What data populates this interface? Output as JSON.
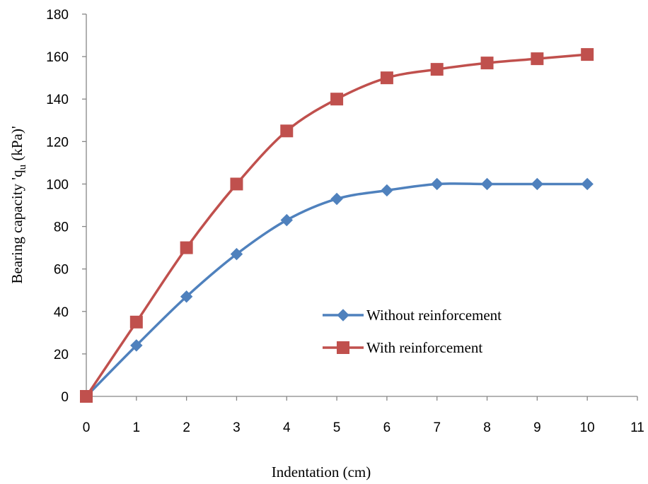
{
  "chart_data": {
    "type": "line",
    "title": "",
    "xlabel": "Indentation (cm)",
    "ylabel": {
      "prefix": "Bearing capacity 'q",
      "sub": "u",
      "suffix": " (kPa)'"
    },
    "xlim": [
      0,
      11
    ],
    "ylim": [
      0,
      180
    ],
    "xticks": [
      0,
      1,
      2,
      3,
      4,
      5,
      6,
      7,
      8,
      9,
      10,
      11
    ],
    "yticks": [
      0,
      20,
      40,
      60,
      80,
      100,
      120,
      140,
      160,
      180
    ],
    "grid": false,
    "legend_position": "lower-right",
    "x": [
      0,
      1,
      2,
      3,
      4,
      5,
      6,
      7,
      8,
      9,
      10
    ],
    "series": [
      {
        "name": "Without reinforcement",
        "marker": "diamond",
        "color": "#4f81bd",
        "values": [
          0,
          24,
          47,
          67,
          83,
          93,
          97,
          100,
          100,
          100,
          100
        ]
      },
      {
        "name": "With reinforcement",
        "marker": "square",
        "color": "#c0504d",
        "values": [
          0,
          35,
          70,
          100,
          125,
          140,
          150,
          154,
          157,
          159,
          161
        ]
      }
    ]
  }
}
